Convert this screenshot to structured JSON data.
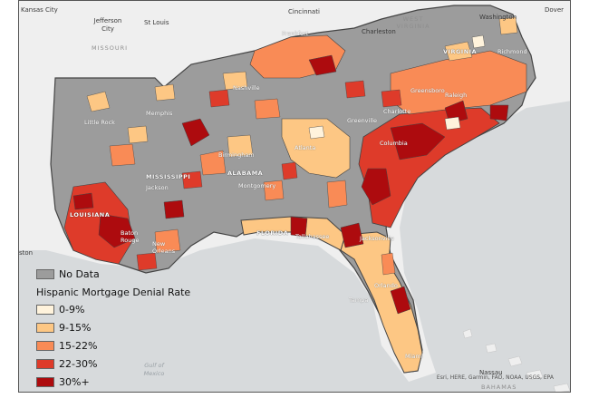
{
  "colors": {
    "no_data": "#9c9c9c",
    "c0_9": "#fff3dc",
    "c9_15": "#fdc784",
    "c15_22": "#f98b56",
    "c22_30": "#de3b2a",
    "c30_plus": "#ad0b0e",
    "water": "#d7dadc",
    "land_outside": "#efefef"
  },
  "legend": {
    "no_data": "No Data",
    "title": "Hispanic Mortgage Denial Rate",
    "items": [
      "0-9%",
      "9-15%",
      "15-22%",
      "22-30%",
      "30%+"
    ]
  },
  "labels": {
    "kansas_city": "Kansas City",
    "jefferson_city": "Jefferson City",
    "st_louis": "St Louis",
    "missouri": "MISSOURI",
    "cincinnati": "Cincinnati",
    "frankfort": "Frankfort",
    "charleston_wv": "Charleston",
    "west_virginia": "WEST VIRGINIA",
    "washington": "Washington",
    "dover": "Dover",
    "virginia": "VIRGINIA",
    "richmond": "Richmond",
    "nashville": "Nashville",
    "little_rock": "Little Rock",
    "memphis": "Memphis",
    "greensboro": "Greensboro",
    "raleigh": "Raleigh",
    "charlotte": "Charlotte",
    "greenville": "Greenville",
    "atlanta": "Atlanta",
    "columbia": "Columbia",
    "birmingham": "Birmingham",
    "alabama": "ALABAMA",
    "mississippi": "MISSISSIPPI",
    "jackson": "Jackson",
    "montgomery": "Montgomery",
    "louisiana": "LOUISIANA",
    "florida": "FLORIDA",
    "tallahassee": "Tallahassee",
    "jacksonville": "Jacksonville",
    "baton_rouge": "Baton Rouge",
    "new_orleans": "New Orleans",
    "houston": "Houston",
    "tampa": "Tampa",
    "orlando": "Orlando",
    "miami": "Miami",
    "gulf_of_mexico": "Gulf of Mexico",
    "nassau": "Nassau",
    "bahamas": "BAHAMAS"
  },
  "attribution": "Esri, HERE, Garmin, FAO, NOAA, USGS, EPA"
}
